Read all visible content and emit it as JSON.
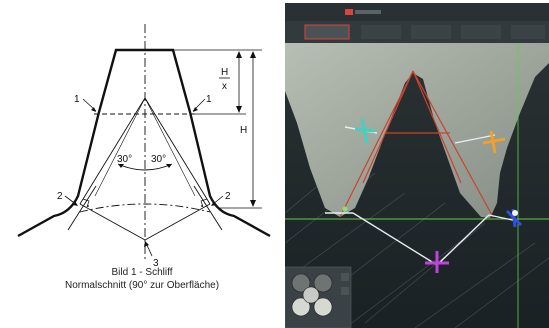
{
  "figure": {
    "caption_line1": "Bild 1 - Schliff",
    "caption_line2": "Normalschnitt (90° zur Oberfläche)",
    "labels": {
      "flank_marker_left": "1",
      "flank_marker_right": "1",
      "root_marker_left": "2",
      "root_marker_right": "2",
      "bottom_marker": "3",
      "angle_left": "30°",
      "angle_right": "30°",
      "fraction_numerator": "H",
      "fraction_denominator": "x",
      "height_label": "H"
    }
  },
  "microscope": {
    "accent_color": "#d8453a",
    "overlay_line_color": "#c8442e",
    "marker_colors": [
      "#3fd1c4",
      "#f0a030",
      "#c040e0",
      "#3050e0"
    ],
    "icons": [
      "camera-icon",
      "settings-icon"
    ]
  }
}
